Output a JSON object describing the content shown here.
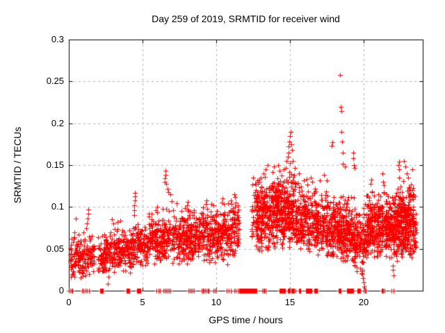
{
  "window": {
    "background": "#ffffff"
  },
  "chart_data": {
    "type": "scatter",
    "title": "Day 259 of 2019, SRMTID for receiver wind",
    "xlabel": "GPS time / hours",
    "ylabel": "SRMTID / TECUs",
    "xlim": [
      0,
      24
    ],
    "ylim": [
      0,
      0.3
    ],
    "xticks": [
      {
        "value": 0,
        "label": "0"
      },
      {
        "value": 5,
        "label": "5"
      },
      {
        "value": 10,
        "label": "10"
      },
      {
        "value": 15,
        "label": "15"
      },
      {
        "value": 20,
        "label": "20"
      }
    ],
    "yticks": [
      {
        "value": 0,
        "label": "0"
      },
      {
        "value": 0.05,
        "label": "0.05"
      },
      {
        "value": 0.1,
        "label": "0.1"
      },
      {
        "value": 0.15,
        "label": "0.15"
      },
      {
        "value": 0.2,
        "label": "0.2"
      },
      {
        "value": 0.25,
        "label": "0.25"
      },
      {
        "value": 0.3,
        "label": "0.3"
      }
    ],
    "grid": true,
    "legend": "none",
    "marker": {
      "shape": "plus",
      "color": "#ff0000",
      "size": 7
    },
    "colors": {
      "marker": "#ff0000",
      "grid": "#b2b2b2",
      "axis": "#000000"
    },
    "seed": 2019259,
    "band_segments": [
      {
        "t0": 0.05,
        "t1": 1.75,
        "n": 170,
        "c0": 0.038,
        "c1": 0.042,
        "sigma": 0.013,
        "lo": 0.012,
        "hi": 0.075
      },
      {
        "t0": 2.0,
        "t1": 3.1,
        "n": 130,
        "c0": 0.04,
        "c1": 0.045,
        "sigma": 0.012,
        "lo": 0.015,
        "hi": 0.075
      },
      {
        "t0": 3.1,
        "t1": 4.35,
        "n": 150,
        "c0": 0.045,
        "c1": 0.05,
        "sigma": 0.012,
        "lo": 0.02,
        "hi": 0.082
      },
      {
        "t0": 4.35,
        "t1": 5.2,
        "n": 110,
        "c0": 0.055,
        "c1": 0.055,
        "sigma": 0.012,
        "lo": 0.03,
        "hi": 0.09
      },
      {
        "t0": 5.2,
        "t1": 6.4,
        "n": 150,
        "c0": 0.058,
        "c1": 0.06,
        "sigma": 0.014,
        "lo": 0.03,
        "hi": 0.1
      },
      {
        "t0": 6.4,
        "t1": 8.0,
        "n": 210,
        "c0": 0.062,
        "c1": 0.065,
        "sigma": 0.015,
        "lo": 0.03,
        "hi": 0.11
      },
      {
        "t0": 8.0,
        "t1": 9.5,
        "n": 210,
        "c0": 0.065,
        "c1": 0.068,
        "sigma": 0.015,
        "lo": 0.035,
        "hi": 0.105
      },
      {
        "t0": 9.5,
        "t1": 11.55,
        "n": 280,
        "c0": 0.068,
        "c1": 0.072,
        "sigma": 0.016,
        "lo": 0.025,
        "hi": 0.115
      },
      {
        "t0": 12.35,
        "t1": 12.65,
        "n": 22,
        "c0": 0.085,
        "c1": 0.09,
        "sigma": 0.022,
        "lo": 0.05,
        "hi": 0.135
      },
      {
        "t0": 12.65,
        "t1": 13.6,
        "n": 200,
        "c0": 0.088,
        "c1": 0.092,
        "sigma": 0.022,
        "lo": 0.045,
        "hi": 0.148
      },
      {
        "t0": 13.6,
        "t1": 14.6,
        "n": 220,
        "c0": 0.092,
        "c1": 0.096,
        "sigma": 0.022,
        "lo": 0.05,
        "hi": 0.152
      },
      {
        "t0": 14.6,
        "t1": 15.35,
        "n": 150,
        "c0": 0.098,
        "c1": 0.098,
        "sigma": 0.024,
        "lo": 0.05,
        "hi": 0.158
      },
      {
        "t0": 15.35,
        "t1": 16.8,
        "n": 240,
        "c0": 0.085,
        "c1": 0.082,
        "sigma": 0.02,
        "lo": 0.045,
        "hi": 0.135
      },
      {
        "t0": 16.8,
        "t1": 18.3,
        "n": 260,
        "c0": 0.078,
        "c1": 0.075,
        "sigma": 0.018,
        "lo": 0.04,
        "hi": 0.128
      },
      {
        "t0": 18.3,
        "t1": 19.35,
        "n": 210,
        "c0": 0.072,
        "c1": 0.068,
        "sigma": 0.018,
        "lo": 0.035,
        "hi": 0.12
      },
      {
        "t0": 19.35,
        "t1": 20.15,
        "n": 130,
        "c0": 0.062,
        "c1": 0.055,
        "sigma": 0.018,
        "lo": 0.012,
        "hi": 0.11
      },
      {
        "t0": 20.15,
        "t1": 21.5,
        "n": 260,
        "c0": 0.075,
        "c1": 0.075,
        "sigma": 0.017,
        "lo": 0.04,
        "hi": 0.122
      },
      {
        "t0": 21.5,
        "t1": 22.4,
        "n": 230,
        "c0": 0.078,
        "c1": 0.08,
        "sigma": 0.018,
        "lo": 0.035,
        "hi": 0.125
      },
      {
        "t0": 22.4,
        "t1": 23.2,
        "n": 240,
        "c0": 0.082,
        "c1": 0.085,
        "sigma": 0.02,
        "lo": 0.03,
        "hi": 0.135
      },
      {
        "t0": 23.2,
        "t1": 23.55,
        "n": 60,
        "c0": 0.08,
        "c1": 0.075,
        "sigma": 0.02,
        "lo": 0.035,
        "hi": 0.125
      }
    ],
    "outliers": [
      [
        0.45,
        0.086
      ],
      [
        1.2,
        0.075
      ],
      [
        1.22,
        0.08
      ],
      [
        1.25,
        0.086
      ],
      [
        1.3,
        0.092
      ],
      [
        1.33,
        0.097
      ],
      [
        2.65,
        0.008
      ],
      [
        2.9,
        0.085
      ],
      [
        3.0,
        0.08
      ],
      [
        3.3,
        0.082
      ],
      [
        3.5,
        0.084
      ],
      [
        4.42,
        0.09
      ],
      [
        4.45,
        0.096
      ],
      [
        4.45,
        0.102
      ],
      [
        4.48,
        0.108
      ],
      [
        4.5,
        0.113
      ],
      [
        4.5,
        0.117
      ],
      [
        5.9,
        0.096
      ],
      [
        6.0,
        0.1
      ],
      [
        6.5,
        0.13
      ],
      [
        6.52,
        0.134
      ],
      [
        6.55,
        0.138
      ],
      [
        6.55,
        0.143
      ],
      [
        6.6,
        0.128
      ],
      [
        6.7,
        0.122
      ],
      [
        6.75,
        0.118
      ],
      [
        6.9,
        0.115
      ],
      [
        8.0,
        0.102
      ],
      [
        8.05,
        0.106
      ],
      [
        9.3,
        0.104
      ],
      [
        9.35,
        0.108
      ],
      [
        10.35,
        0.105
      ],
      [
        10.4,
        0.11
      ],
      [
        11.0,
        0.108
      ],
      [
        11.25,
        0.112
      ],
      [
        11.3,
        0.105
      ],
      [
        12.9,
        0.13
      ],
      [
        13.0,
        0.135
      ],
      [
        13.2,
        0.14
      ],
      [
        13.35,
        0.145
      ],
      [
        13.5,
        0.15
      ],
      [
        13.8,
        0.142
      ],
      [
        13.9,
        0.148
      ],
      [
        14.2,
        0.15
      ],
      [
        14.3,
        0.143
      ],
      [
        14.7,
        0.147
      ],
      [
        14.75,
        0.155
      ],
      [
        14.85,
        0.16
      ],
      [
        14.9,
        0.165
      ],
      [
        14.9,
        0.172
      ],
      [
        14.95,
        0.178
      ],
      [
        15.0,
        0.185
      ],
      [
        15.05,
        0.19
      ],
      [
        15.1,
        0.175
      ],
      [
        15.15,
        0.168
      ],
      [
        15.6,
        0.14
      ],
      [
        16.4,
        0.135
      ],
      [
        16.5,
        0.13
      ],
      [
        17.0,
        0.132
      ],
      [
        17.3,
        0.138
      ],
      [
        17.5,
        0.132
      ],
      [
        17.8,
        0.173
      ],
      [
        17.85,
        0.177
      ],
      [
        18.4,
        0.258
      ],
      [
        18.45,
        0.22
      ],
      [
        18.5,
        0.215
      ],
      [
        18.5,
        0.19
      ],
      [
        18.55,
        0.178
      ],
      [
        18.6,
        0.165
      ],
      [
        18.6,
        0.152
      ],
      [
        18.7,
        0.148
      ],
      [
        19.3,
        0.165
      ],
      [
        19.3,
        0.158
      ],
      [
        19.35,
        0.15
      ],
      [
        19.4,
        0.147
      ],
      [
        19.85,
        0.035
      ],
      [
        19.9,
        0.025
      ],
      [
        19.92,
        0.02
      ],
      [
        19.95,
        0.015
      ],
      [
        20.0,
        0.01
      ],
      [
        20.05,
        0.005
      ],
      [
        20.45,
        0.128
      ],
      [
        20.5,
        0.133
      ],
      [
        21.25,
        0.14
      ],
      [
        21.3,
        0.13
      ],
      [
        21.35,
        0.126
      ],
      [
        21.9,
        0.04
      ],
      [
        21.95,
        0.03
      ],
      [
        21.97,
        0.025
      ],
      [
        22.0,
        0.018
      ],
      [
        22.35,
        0.15
      ],
      [
        22.4,
        0.154
      ],
      [
        22.42,
        0.145
      ],
      [
        22.45,
        0.118
      ],
      [
        22.75,
        0.155
      ],
      [
        22.8,
        0.148
      ],
      [
        22.9,
        0.14
      ],
      [
        23.0,
        0.135
      ],
      [
        23.3,
        0.145
      ],
      [
        23.3,
        0.12
      ],
      [
        23.35,
        0.115
      ]
    ],
    "zero_marks": [
      {
        "t0": 0.02,
        "t1": 0.25,
        "n": 4
      },
      {
        "t0": 0.9,
        "t1": 1.35,
        "n": 5
      },
      {
        "t0": 2.1,
        "t1": 2.3,
        "n": 8
      },
      {
        "t0": 3.9,
        "t1": 4.1,
        "n": 8
      },
      {
        "t0": 4.6,
        "t1": 4.85,
        "n": 8
      },
      {
        "t0": 5.95,
        "t1": 6.2,
        "n": 3
      },
      {
        "t0": 6.4,
        "t1": 6.9,
        "n": 6
      },
      {
        "t0": 8.1,
        "t1": 8.5,
        "n": 5
      },
      {
        "t0": 9.0,
        "t1": 9.5,
        "n": 7
      },
      {
        "t0": 9.8,
        "t1": 10.0,
        "n": 3
      },
      {
        "t0": 10.7,
        "t1": 11.0,
        "n": 3
      },
      {
        "t0": 11.2,
        "t1": 11.45,
        "n": 3
      },
      {
        "t0": 11.55,
        "t1": 12.75,
        "n": 45
      },
      {
        "t0": 13.1,
        "t1": 13.35,
        "n": 4
      },
      {
        "t0": 14.3,
        "t1": 14.65,
        "n": 10
      },
      {
        "t0": 14.85,
        "t1": 15.35,
        "n": 10
      },
      {
        "t0": 15.6,
        "t1": 15.7,
        "n": 3
      },
      {
        "t0": 16.1,
        "t1": 16.45,
        "n": 10
      },
      {
        "t0": 16.65,
        "t1": 16.85,
        "n": 6
      },
      {
        "t0": 18.3,
        "t1": 18.45,
        "n": 4
      },
      {
        "t0": 18.85,
        "t1": 19.3,
        "n": 12
      },
      {
        "t0": 19.55,
        "t1": 19.75,
        "n": 6
      },
      {
        "t0": 20.0,
        "t1": 20.15,
        "n": 3
      },
      {
        "t0": 21.2,
        "t1": 21.4,
        "n": 4
      },
      {
        "t0": 21.9,
        "t1": 22.0,
        "n": 2
      }
    ]
  }
}
